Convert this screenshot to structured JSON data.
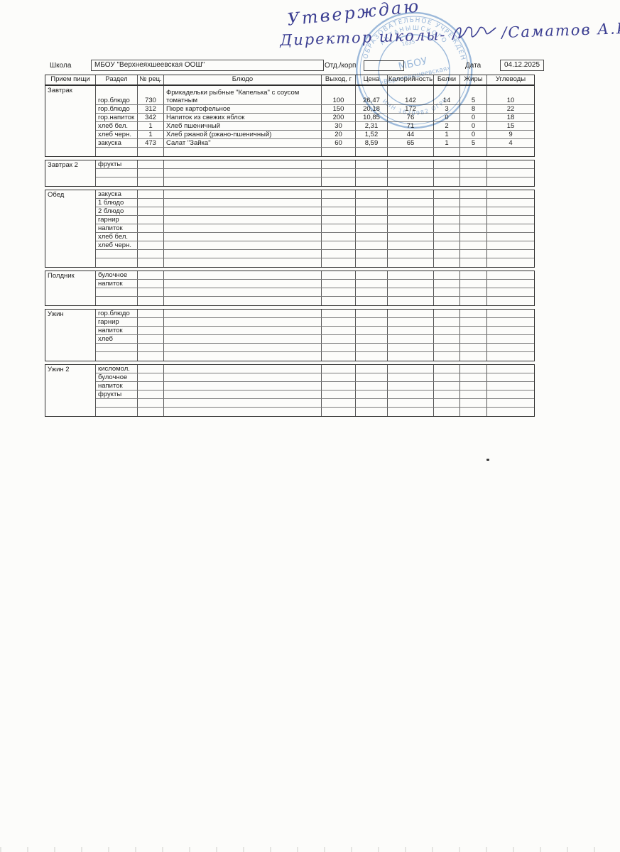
{
  "handwriting": {
    "line1": "Утверждаю",
    "line2_prefix": "Директор школы-",
    "line2_suffix": "/Саматов А.И./",
    "ink_color": "#3c3f92"
  },
  "stamp": {
    "color": "#4e83c4",
    "ring_top": "ОБРАЗОВАТЕЛЬНОЕ УЧРЕЖДЕНИЕ",
    "ring_inner": "АКТАНЫШСКОГО",
    "small_digits": "1635",
    "center_line1": "МБОУ",
    "center_line2": "«Верхнеяхшеевская»",
    "ring_bottom": "ИНН 1620982  ОГРН"
  },
  "header": {
    "school_label": "Школа",
    "school_value": "МБОУ \"Верхнеяхшеевская ООШ\"",
    "dept_label": "Отд./корп",
    "dept_value": "",
    "date_label": "Дата",
    "date_value": "04.12.2025"
  },
  "table": {
    "columns": [
      "Прием пищи",
      "Раздел",
      "№ рец.",
      "Блюдо",
      "Выход, г",
      "Цена",
      "Калорийность",
      "Белки",
      "Жиры",
      "Углеводы"
    ],
    "sections": [
      {
        "name": "Завтрак",
        "rows": [
          [
            "гор.блюдо",
            "730",
            "Фрикадельки рыбные \"Капелька\" с соусом томатным",
            "100",
            "26,47",
            "142",
            "14",
            "5",
            "10"
          ],
          [
            "гор.блюдо",
            "312",
            "Пюре картофельное",
            "150",
            "20,18",
            "172",
            "3",
            "8",
            "22"
          ],
          [
            "гор.напиток",
            "342",
            "Напиток из свежих яблок",
            "200",
            "10,85",
            "76",
            "0",
            "0",
            "18"
          ],
          [
            "хлеб бел.",
            "1",
            "Хлеб пшеничный",
            "30",
            "2,31",
            "71",
            "2",
            "0",
            "15"
          ],
          [
            "хлеб черн.",
            "1",
            "Хлеб ржаной (ржано-пшеничный)",
            "20",
            "1,52",
            "44",
            "1",
            "0",
            "9"
          ],
          [
            "закуска",
            "473",
            "Салат \"Зайка\"",
            "60",
            "8,59",
            "65",
            "1",
            "5",
            "4"
          ],
          [
            "",
            "",
            "",
            "",
            "",
            "",
            "",
            "",
            ""
          ]
        ]
      },
      {
        "name": "Завтрак 2",
        "rows": [
          [
            "фрукты",
            "",
            "",
            "",
            "",
            "",
            "",
            "",
            ""
          ],
          [
            "",
            "",
            "",
            "",
            "",
            "",
            "",
            "",
            ""
          ],
          [
            "",
            "",
            "",
            "",
            "",
            "",
            "",
            "",
            ""
          ]
        ]
      },
      {
        "name": "Обед",
        "rows": [
          [
            "закуска",
            "",
            "",
            "",
            "",
            "",
            "",
            "",
            ""
          ],
          [
            "1 блюдо",
            "",
            "",
            "",
            "",
            "",
            "",
            "",
            ""
          ],
          [
            "2 блюдо",
            "",
            "",
            "",
            "",
            "",
            "",
            "",
            ""
          ],
          [
            "гарнир",
            "",
            "",
            "",
            "",
            "",
            "",
            "",
            ""
          ],
          [
            "напиток",
            "",
            "",
            "",
            "",
            "",
            "",
            "",
            ""
          ],
          [
            "хлеб бел.",
            "",
            "",
            "",
            "",
            "",
            "",
            "",
            ""
          ],
          [
            "хлеб черн.",
            "",
            "",
            "",
            "",
            "",
            "",
            "",
            ""
          ],
          [
            "",
            "",
            "",
            "",
            "",
            "",
            "",
            "",
            ""
          ],
          [
            "",
            "",
            "",
            "",
            "",
            "",
            "",
            "",
            ""
          ]
        ]
      },
      {
        "name": "Полдник",
        "rows": [
          [
            "булочное",
            "",
            "",
            "",
            "",
            "",
            "",
            "",
            ""
          ],
          [
            "напиток",
            "",
            "",
            "",
            "",
            "",
            "",
            "",
            ""
          ],
          [
            "",
            "",
            "",
            "",
            "",
            "",
            "",
            "",
            ""
          ],
          [
            "",
            "",
            "",
            "",
            "",
            "",
            "",
            "",
            ""
          ]
        ]
      },
      {
        "name": "Ужин",
        "rows": [
          [
            "гор.блюдо",
            "",
            "",
            "",
            "",
            "",
            "",
            "",
            ""
          ],
          [
            "гарнир",
            "",
            "",
            "",
            "",
            "",
            "",
            "",
            ""
          ],
          [
            "напиток",
            "",
            "",
            "",
            "",
            "",
            "",
            "",
            ""
          ],
          [
            "хлеб",
            "",
            "",
            "",
            "",
            "",
            "",
            "",
            ""
          ],
          [
            "",
            "",
            "",
            "",
            "",
            "",
            "",
            "",
            ""
          ],
          [
            "",
            "",
            "",
            "",
            "",
            "",
            "",
            "",
            ""
          ]
        ]
      },
      {
        "name": "Ужин 2",
        "rows": [
          [
            "кисломол.",
            "",
            "",
            "",
            "",
            "",
            "",
            "",
            ""
          ],
          [
            "булочное",
            "",
            "",
            "",
            "",
            "",
            "",
            "",
            ""
          ],
          [
            "напиток",
            "",
            "",
            "",
            "",
            "",
            "",
            "",
            ""
          ],
          [
            "фрукты",
            "",
            "",
            "",
            "",
            "",
            "",
            "",
            ""
          ],
          [
            "",
            "",
            "",
            "",
            "",
            "",
            "",
            "",
            ""
          ],
          [
            "",
            "",
            "",
            "",
            "",
            "",
            "",
            "",
            ""
          ]
        ]
      }
    ]
  }
}
